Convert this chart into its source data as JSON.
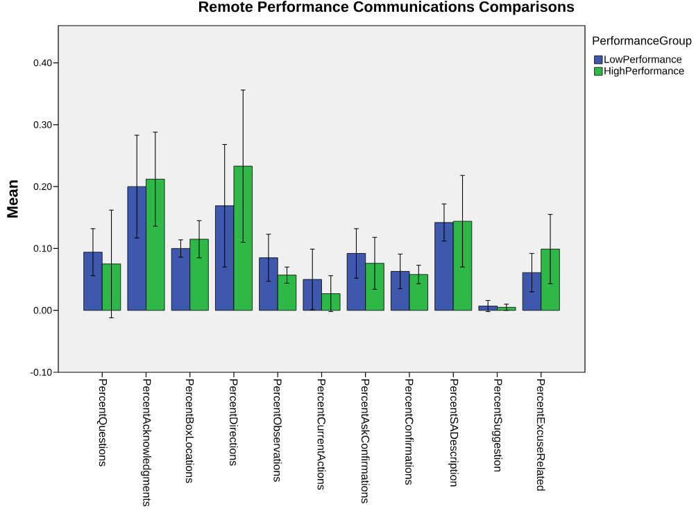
{
  "chart_data": {
    "type": "bar",
    "title": "Remote Performance Communications Comparisons",
    "ylabel": "Mean",
    "legend_title": "PerformanceGroup",
    "categories": [
      "PercentQuestions",
      "PercentAcknowledgments",
      "PercentBoxLocations",
      "PercentDirections",
      "PercentObservations",
      "PercentCurrentActions",
      "PercentAskConfirmations",
      "PercentConfirmations",
      "PercentSADescription",
      "PercentSuggestion",
      "PercentExcuseRelated"
    ],
    "series": [
      {
        "name": "LowPerformance",
        "color": "#3e58ac",
        "values": [
          0.094,
          0.2,
          0.1,
          0.169,
          0.085,
          0.05,
          0.092,
          0.063,
          0.142,
          0.007,
          0.061
        ],
        "errors": [
          0.038,
          0.083,
          0.014,
          0.099,
          0.038,
          0.049,
          0.04,
          0.028,
          0.03,
          0.009,
          0.031
        ]
      },
      {
        "name": "HighPerformance",
        "color": "#2eb848",
        "values": [
          0.075,
          0.212,
          0.115,
          0.233,
          0.057,
          0.027,
          0.076,
          0.058,
          0.144,
          0.005,
          0.099
        ],
        "errors": [
          0.087,
          0.076,
          0.03,
          0.123,
          0.013,
          0.029,
          0.042,
          0.015,
          0.074,
          0.005,
          0.056
        ]
      }
    ],
    "ylim": [
      -0.1,
      0.46
    ],
    "yticks": [
      {
        "value": -0.1,
        "label": "-0.10"
      },
      {
        "value": 0.0,
        "label": "0.00"
      },
      {
        "value": 0.1,
        "label": "0.10"
      },
      {
        "value": 0.2,
        "label": "0.20"
      },
      {
        "value": 0.3,
        "label": "0.30"
      },
      {
        "value": 0.4,
        "label": "0.40"
      }
    ],
    "legend": "right"
  }
}
